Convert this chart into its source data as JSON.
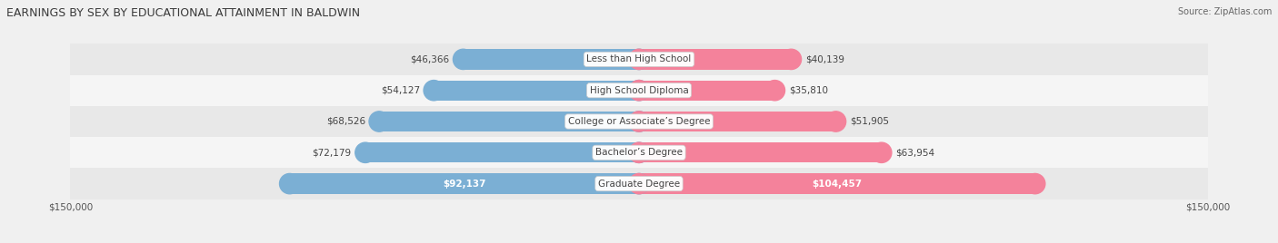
{
  "title": "EARNINGS BY SEX BY EDUCATIONAL ATTAINMENT IN BALDWIN",
  "source": "Source: ZipAtlas.com",
  "categories": [
    "Less than High School",
    "High School Diploma",
    "College or Associate’s Degree",
    "Bachelor’s Degree",
    "Graduate Degree"
  ],
  "male_values": [
    46366,
    54127,
    68526,
    72179,
    92137
  ],
  "female_values": [
    40139,
    35810,
    51905,
    63954,
    104457
  ],
  "male_labels": [
    "$46,366",
    "$54,127",
    "$68,526",
    "$72,179",
    "$92,137"
  ],
  "female_labels": [
    "$40,139",
    "$35,810",
    "$51,905",
    "$63,954",
    "$104,457"
  ],
  "male_color": "#7bafd4",
  "female_color": "#f4829b",
  "max_value": 150000,
  "background_color": "#f0f0f0",
  "row_bg_colors": [
    "#e8e8e8",
    "#f5f5f5"
  ],
  "bar_height": 0.65,
  "label_inside_row": 4
}
